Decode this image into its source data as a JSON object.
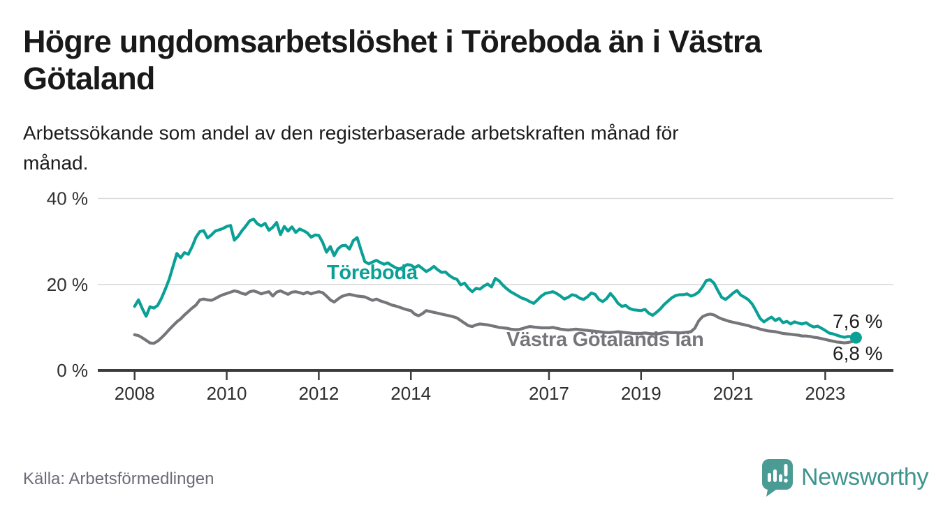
{
  "header": {
    "title_line1": "Högre ungdomsarbetslöshet i Töreboda än i Västra",
    "title_line2": "Götaland",
    "subtitle_line1": "Arbetssökande som andel av den registerbaserade arbetskraften månad för",
    "subtitle_line2": "månad."
  },
  "footer": {
    "source": "Källa: Arbetsförmedlingen",
    "brand": "Newsworthy",
    "brand_icon": "newsworthy-speech-bubble-bar-chart-icon",
    "brand_color": "#3f948e"
  },
  "colors": {
    "accent_teal": "#0aa096",
    "series_gray": "#75757a",
    "gridline": "#d9d9d9",
    "axis": "#3c3c3c",
    "text_dark": "#191919"
  },
  "chart_data": {
    "type": "line",
    "title": "Högre ungdomsarbetslöshet i Töreboda än i Västra Götaland",
    "subtitle": "Arbetssökande som andel av den registerbaserade arbetskraften månad för månad.",
    "unit": "%",
    "grid": "horizontal",
    "legend_position": "inline-labels",
    "ylim": [
      0,
      40
    ],
    "x_range_years": [
      2007.2,
      2024.48
    ],
    "y_tick_labels": [
      "40 %",
      "20 %",
      "0 %"
    ],
    "y_tick_values": [
      40,
      20,
      0
    ],
    "x_tick_labels": [
      "2008",
      "2010",
      "2012",
      "2014",
      "2017",
      "2019",
      "2021",
      "2023"
    ],
    "x_tick_years": [
      2008,
      2010,
      2012,
      2014,
      2017,
      2019,
      2021,
      2023
    ],
    "series": [
      {
        "name": "Töreboda",
        "color": "#0aa096",
        "end_label": "7,6 %",
        "end_value": 7.6,
        "start_year": 2008,
        "points_per_year": 12,
        "values": [
          14.9,
          16.4,
          14.4,
          12.6,
          14.8,
          14.5,
          15.1,
          16.8,
          18.9,
          21.2,
          24.2,
          27.2,
          26.2,
          27.4,
          27.0,
          28.8,
          31.0,
          32.3,
          32.5,
          30.8,
          31.5,
          32.4,
          32.7,
          33.0,
          33.5,
          33.7,
          30.3,
          31.2,
          32.5,
          33.6,
          34.8,
          35.2,
          34.1,
          33.6,
          34.2,
          32.6,
          33.3,
          34.4,
          31.6,
          33.5,
          32.4,
          33.4,
          32.1,
          32.9,
          32.5,
          32.0,
          31.0,
          31.5,
          31.4,
          29.8,
          27.5,
          28.8,
          26.7,
          28.3,
          29.0,
          29.1,
          28.2,
          30.2,
          30.9,
          28.0,
          25.3,
          24.8,
          25.2,
          25.6,
          25.1,
          24.7,
          25.0,
          24.4,
          23.9,
          23.6,
          24.0,
          24.6,
          24.5,
          23.9,
          24.4,
          23.7,
          23.0,
          23.5,
          24.2,
          23.4,
          22.8,
          22.9,
          22.1,
          21.5,
          21.2,
          19.9,
          20.3,
          19.1,
          18.3,
          19.1,
          18.9,
          19.6,
          20.1,
          19.4,
          21.4,
          20.8,
          19.8,
          19.0,
          18.3,
          17.8,
          17.3,
          16.8,
          16.5,
          16.0,
          15.6,
          16.4,
          17.3,
          17.9,
          18.1,
          18.3,
          17.9,
          17.3,
          16.6,
          17.0,
          17.6,
          17.4,
          16.8,
          16.5,
          17.1,
          18.0,
          17.7,
          16.5,
          16.0,
          16.7,
          17.9,
          16.9,
          15.6,
          14.9,
          15.1,
          14.4,
          14.1,
          14.0,
          13.9,
          14.2,
          13.3,
          12.8,
          13.5,
          14.3,
          15.3,
          16.1,
          16.9,
          17.4,
          17.6,
          17.6,
          17.8,
          17.3,
          17.6,
          18.2,
          19.4,
          20.9,
          21.1,
          20.3,
          18.6,
          17.0,
          16.5,
          17.2,
          18.0,
          18.6,
          17.5,
          17.0,
          16.4,
          15.4,
          13.8,
          12.1,
          11.3,
          11.9,
          12.4,
          11.6,
          12.1,
          11.1,
          11.4,
          10.8,
          11.3,
          11.0,
          10.8,
          11.1,
          10.5,
          10.1,
          10.3,
          9.8,
          9.3,
          8.7,
          8.5,
          8.2,
          7.9,
          7.7,
          7.9,
          7.8,
          7.6
        ]
      },
      {
        "name": "Västra Götalands län",
        "color": "#75757a",
        "end_label": "6,8 %",
        "end_value": 6.8,
        "start_year": 2008,
        "points_per_year": 12,
        "values": [
          8.3,
          8.1,
          7.6,
          7.0,
          6.4,
          6.3,
          6.8,
          7.6,
          8.5,
          9.5,
          10.4,
          11.3,
          12.0,
          12.9,
          13.7,
          14.5,
          15.2,
          16.4,
          16.6,
          16.4,
          16.3,
          16.7,
          17.2,
          17.6,
          17.9,
          18.2,
          18.5,
          18.3,
          17.9,
          17.7,
          18.3,
          18.5,
          18.2,
          17.8,
          18.1,
          18.3,
          17.3,
          18.2,
          18.5,
          18.1,
          17.7,
          18.2,
          18.3,
          18.1,
          17.8,
          18.2,
          17.8,
          18.1,
          18.3,
          18.1,
          17.3,
          16.4,
          15.9,
          16.6,
          17.2,
          17.5,
          17.7,
          17.5,
          17.3,
          17.2,
          17.1,
          16.7,
          16.3,
          16.6,
          16.2,
          15.9,
          15.6,
          15.2,
          15.0,
          14.7,
          14.4,
          14.1,
          13.9,
          13.1,
          12.7,
          13.2,
          13.9,
          13.7,
          13.5,
          13.3,
          13.1,
          12.9,
          12.7,
          12.5,
          12.2,
          11.6,
          11.0,
          10.4,
          10.2,
          10.6,
          10.8,
          10.7,
          10.6,
          10.4,
          10.2,
          10.0,
          9.9,
          9.8,
          9.6,
          9.5,
          9.5,
          9.7,
          10.0,
          10.2,
          10.1,
          10.0,
          9.9,
          9.9,
          9.9,
          10.0,
          9.8,
          9.6,
          9.5,
          9.4,
          9.5,
          9.6,
          9.5,
          9.4,
          9.3,
          9.2,
          9.1,
          9.0,
          8.9,
          8.8,
          8.8,
          8.9,
          9.0,
          8.9,
          8.8,
          8.7,
          8.6,
          8.6,
          8.6,
          8.7,
          8.6,
          8.5,
          8.5,
          8.6,
          8.8,
          8.9,
          8.8,
          8.8,
          8.7,
          8.8,
          8.9,
          9.0,
          9.8,
          11.5,
          12.5,
          12.9,
          13.1,
          12.9,
          12.4,
          12.0,
          11.7,
          11.4,
          11.2,
          11.0,
          10.8,
          10.6,
          10.4,
          10.1,
          9.9,
          9.6,
          9.4,
          9.2,
          9.1,
          9.0,
          8.8,
          8.6,
          8.5,
          8.4,
          8.3,
          8.2,
          8.0,
          8.0,
          7.9,
          7.7,
          7.6,
          7.4,
          7.2,
          7.0,
          6.8,
          6.6,
          6.5,
          6.4,
          6.5,
          6.7,
          6.8
        ]
      }
    ]
  }
}
